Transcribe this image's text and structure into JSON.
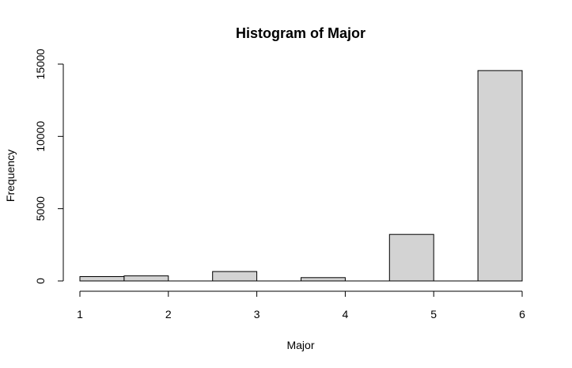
{
  "chart_data": {
    "type": "bar",
    "title": "Histogram of Major",
    "xlabel": "Major",
    "ylabel": "Frequency",
    "x_ticks": [
      "1",
      "2",
      "3",
      "4",
      "5",
      "6"
    ],
    "y_ticks": [
      "0",
      "5000",
      "10000",
      "15000"
    ],
    "xlim": [
      1,
      6
    ],
    "ylim": [
      0,
      15000
    ],
    "bins": [
      {
        "start": 1.0,
        "end": 1.5,
        "value": 300
      },
      {
        "start": 1.5,
        "end": 2.0,
        "value": 350
      },
      {
        "start": 2.0,
        "end": 2.5,
        "value": 0
      },
      {
        "start": 2.5,
        "end": 3.0,
        "value": 650
      },
      {
        "start": 3.0,
        "end": 3.5,
        "value": 0
      },
      {
        "start": 3.5,
        "end": 4.0,
        "value": 230
      },
      {
        "start": 4.0,
        "end": 4.5,
        "value": 0
      },
      {
        "start": 4.5,
        "end": 5.0,
        "value": 3220
      },
      {
        "start": 5.0,
        "end": 5.5,
        "value": 0
      },
      {
        "start": 5.5,
        "end": 6.0,
        "value": 14550
      }
    ],
    "colors": {
      "bar_fill": "#d3d3d3",
      "bar_stroke": "#000000"
    },
    "grid": false
  }
}
